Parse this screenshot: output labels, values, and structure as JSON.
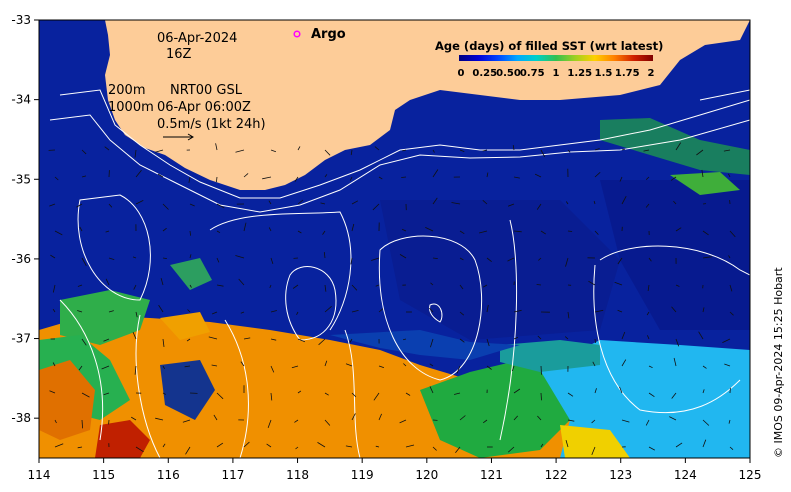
{
  "map": {
    "date": "06-Apr-2024",
    "hour": "16Z",
    "argo_label": "Argo",
    "contour_info": {
      "line1_depth": "200m",
      "line1_source": "NRT00 GSL",
      "line2_depth": "1000m",
      "line2_time": "06-Apr 06:00Z"
    },
    "vector_scale": "0.5m/s (1kt 24h)",
    "credit": "© IMOS 09-Apr-2024 15:25 Hobart",
    "lon_ticks": [
      "114",
      "115",
      "116",
      "117",
      "118",
      "119",
      "120",
      "121",
      "122",
      "123",
      "124",
      "125"
    ],
    "lat_ticks": [
      "-33",
      "-34",
      "-35",
      "-36",
      "-37",
      "-38"
    ],
    "extent": {
      "lon_min": 114,
      "lon_max": 125,
      "lat_min": -38.5,
      "lat_max": -33
    },
    "legend": {
      "title": "Age (days) of filled SST (wrt latest)",
      "ticks": [
        "0",
        "0.25",
        "0.50",
        "0.75",
        "1",
        "1.25",
        "1.5",
        "1.75",
        "2"
      ],
      "colors": [
        "#00007f",
        "#0000d5",
        "#0044ff",
        "#00a8ff",
        "#00d0c8",
        "#33c050",
        "#a0d020",
        "#ffd000",
        "#ff8000",
        "#d02000",
        "#7f0000"
      ]
    },
    "colors": {
      "ocean_fresh": "#08229e",
      "land": "#fdcc98",
      "contour": "#ffffff",
      "argo_marker": "#ff00ff"
    }
  }
}
